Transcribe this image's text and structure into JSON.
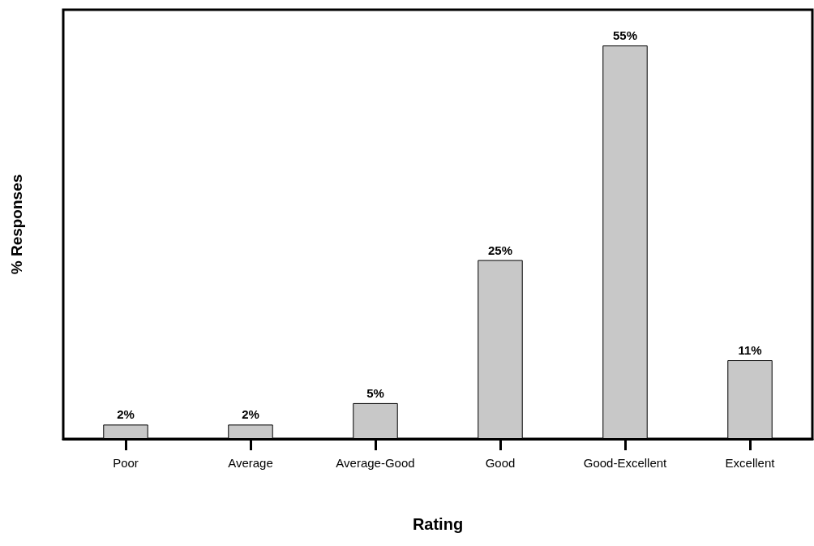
{
  "chart_data": {
    "type": "bar",
    "xlabel": "Rating",
    "ylabel": "% Responses",
    "categories": [
      "Poor",
      "Average",
      "Average-Good",
      "Good",
      "Good-Excellent",
      "Excellent"
    ],
    "values": [
      2,
      2,
      5,
      25,
      55,
      11
    ],
    "value_labels": [
      "2%",
      "2%",
      "5%",
      "25%",
      "55%",
      "11%"
    ],
    "color": "#c8c8c8",
    "grid": false
  }
}
